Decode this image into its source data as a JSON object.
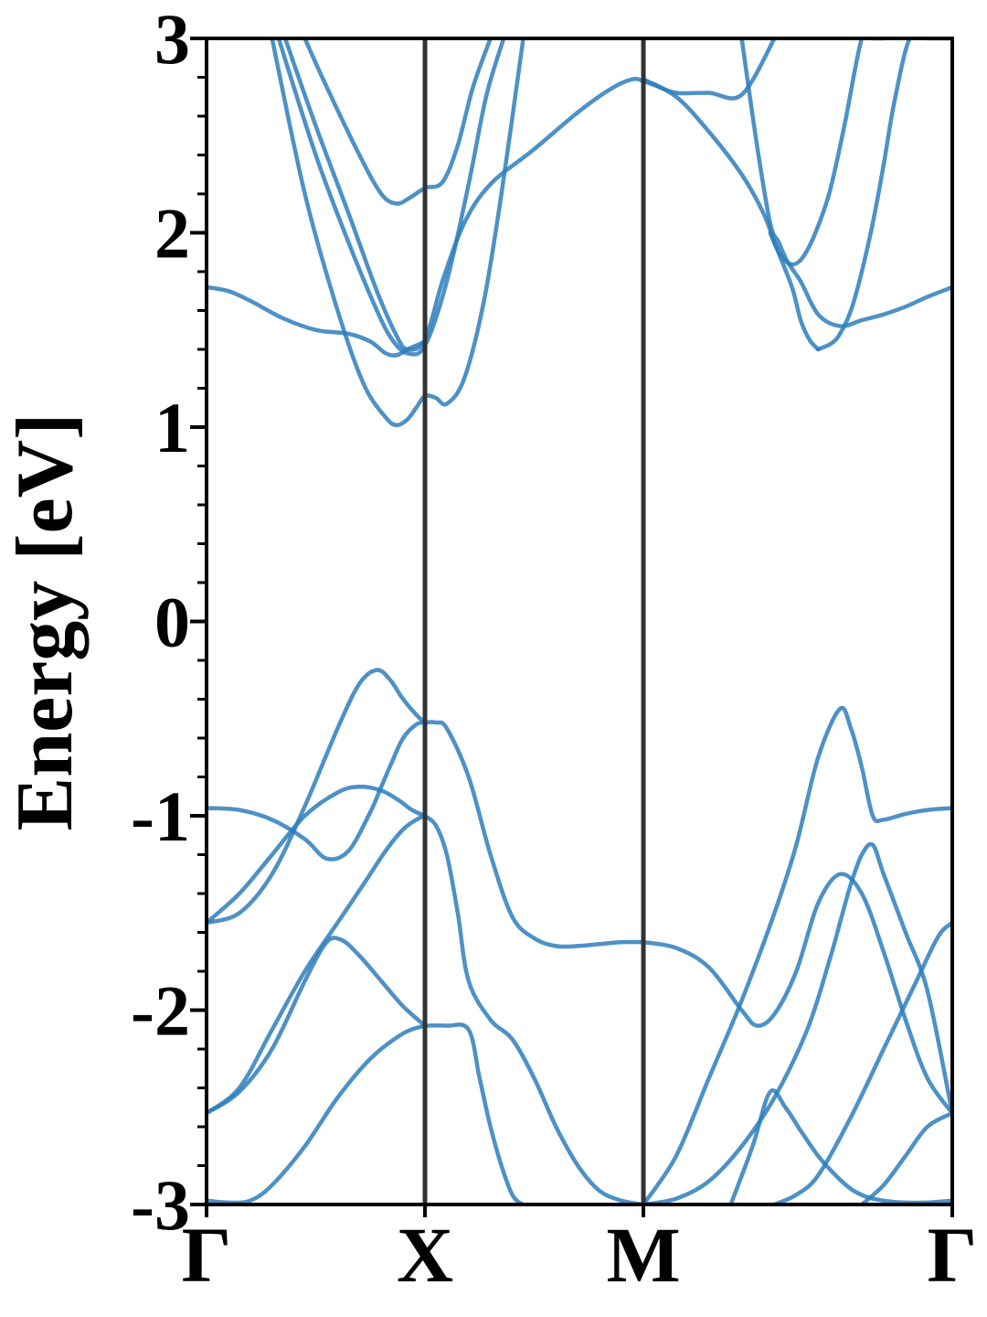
{
  "chart_data": {
    "type": "line",
    "title": "",
    "xlabel": "",
    "ylabel": "Energy [eV]",
    "ylim": [
      -3,
      3
    ],
    "xlim": [
      0,
      3.414
    ],
    "y_ticks": [
      "-3",
      "-2",
      "-1",
      "0",
      "1",
      "2",
      "3"
    ],
    "y_minor_step": 0.2,
    "x_ticks": [
      {
        "label": "Γ",
        "x": 0
      },
      {
        "label": "X",
        "x": 1
      },
      {
        "label": "M",
        "x": 2
      },
      {
        "label": "Γ",
        "x": 3.414
      }
    ],
    "k_path_lines": [
      1,
      2
    ],
    "grid": false,
    "line_color": "#2e7ebc",
    "k_line_color": "#333333",
    "series": [
      {
        "x": [
          0,
          0.1,
          0.2,
          0.35,
          0.5,
          0.65,
          0.75,
          0.82,
          0.87,
          0.92,
          0.96,
          1
        ],
        "values": [
          1.72,
          1.7,
          1.65,
          1.56,
          1.5,
          1.48,
          1.44,
          1.38,
          1.37,
          1.4,
          1.42,
          1.44
        ]
      },
      {
        "x": [
          0.3,
          0.45,
          0.6,
          0.72,
          0.82,
          0.87,
          0.92,
          0.96,
          1,
          1.05,
          1.1,
          1.18,
          1.27,
          1.35,
          1.45
        ],
        "values": [
          3.0,
          2.2,
          1.6,
          1.22,
          1.05,
          1.01,
          1.04,
          1.1,
          1.16,
          1.15,
          1.12,
          1.25,
          1.65,
          2.2,
          3.0
        ]
      },
      {
        "x": [
          0.33,
          0.5,
          0.65,
          0.78,
          0.85,
          0.92,
          1,
          1.1,
          1.2,
          1.28,
          1.36
        ],
        "values": [
          3.0,
          2.4,
          1.95,
          1.6,
          1.45,
          1.38,
          1.42,
          1.75,
          2.25,
          2.7,
          3.0
        ]
      },
      {
        "x": [
          0.36,
          0.5,
          0.65,
          0.78,
          0.87,
          0.92,
          1,
          1.08,
          1.18,
          1.3,
          1.5,
          1.7,
          1.85,
          1.95,
          2,
          2.05,
          2.15,
          2.3,
          2.45,
          2.6
        ],
        "values": [
          3.0,
          2.55,
          2.1,
          1.7,
          1.47,
          1.4,
          1.45,
          1.75,
          2.05,
          2.25,
          2.43,
          2.62,
          2.74,
          2.79,
          2.78,
          2.76,
          2.72,
          2.72,
          2.71,
          3.0
        ]
      },
      {
        "x": [
          0.45,
          0.55,
          0.7,
          0.8,
          0.87,
          0.93,
          1,
          1.08,
          1.15,
          1.22,
          1.3
        ],
        "values": [
          3.0,
          2.75,
          2.4,
          2.2,
          2.15,
          2.18,
          2.23,
          2.26,
          2.45,
          2.75,
          3.0
        ]
      },
      {
        "x": [
          2,
          2.15,
          2.3,
          2.45,
          2.55,
          2.6,
          2.68,
          2.72,
          2.76,
          2.8
        ],
        "values": [
          2.79,
          2.7,
          2.52,
          2.3,
          2.1,
          1.95,
          1.72,
          1.55,
          1.45,
          1.4
        ]
      },
      {
        "x": [
          2.45,
          2.52,
          2.58,
          2.62,
          2.66,
          2.72,
          2.8,
          2.9,
          3.0,
          3.1,
          3.2,
          3.3,
          3.414
        ],
        "values": [
          3.0,
          2.45,
          2.05,
          1.95,
          1.85,
          1.75,
          1.58,
          1.52,
          1.55,
          1.58,
          1.62,
          1.67,
          1.72
        ]
      },
      {
        "x": [
          2.58,
          2.62,
          2.67,
          2.72,
          2.78,
          2.85,
          2.92,
          3.0,
          3.05,
          3.1
        ],
        "values": [
          2.0,
          1.9,
          1.84,
          1.86,
          1.98,
          2.2,
          2.55,
          3.0,
          3.0,
          3.0
        ]
      },
      {
        "x": [
          2.8,
          2.86,
          2.9,
          2.95,
          3.0,
          3.05,
          3.1,
          3.15,
          3.22,
          3.3,
          3.36,
          3.414
        ],
        "values": [
          1.4,
          1.43,
          1.48,
          1.6,
          1.8,
          2.05,
          2.35,
          2.68,
          3.0,
          3.0,
          3.0,
          3.0
        ]
      },
      {
        "x": [
          0,
          0.15,
          0.3,
          0.45,
          0.6,
          0.7,
          0.78,
          0.84,
          0.9,
          0.96,
          1
        ],
        "values": [
          -1.55,
          -1.5,
          -1.3,
          -0.95,
          -0.55,
          -0.32,
          -0.25,
          -0.3,
          -0.4,
          -0.48,
          -0.52
        ]
      },
      {
        "x": [
          1,
          1.05,
          1.1,
          1.2,
          1.3,
          1.4,
          1.5,
          1.6,
          1.7,
          1.8,
          1.9,
          2
        ],
        "values": [
          -0.52,
          -0.52,
          -0.55,
          -0.8,
          -1.2,
          -1.52,
          -1.63,
          -1.67,
          -1.67,
          -1.66,
          -1.65,
          -1.65
        ]
      },
      {
        "x": [
          0,
          0.15,
          0.3,
          0.45,
          0.55,
          0.65,
          0.75,
          0.8,
          0.85,
          0.9,
          0.96,
          1
        ],
        "values": [
          -0.96,
          -0.97,
          -1.02,
          -1.12,
          -1.22,
          -1.18,
          -0.98,
          -0.85,
          -0.72,
          -0.6,
          -0.53,
          -0.52
        ]
      },
      {
        "x": [
          0,
          0.15,
          0.3,
          0.45,
          0.6,
          0.7,
          0.8,
          0.88,
          0.94,
          1
        ],
        "values": [
          -1.55,
          -1.4,
          -1.2,
          -1.0,
          -0.88,
          -0.85,
          -0.87,
          -0.92,
          -0.97,
          -1.0
        ]
      },
      {
        "x": [
          1,
          1.05,
          1.1,
          1.15,
          1.2,
          1.3,
          1.4,
          1.5,
          1.6,
          1.7,
          1.8,
          1.9,
          2
        ],
        "values": [
          -1.0,
          -1.05,
          -1.2,
          -1.5,
          -1.85,
          -2.05,
          -2.15,
          -2.35,
          -2.6,
          -2.8,
          -2.93,
          -2.98,
          -3.0
        ]
      },
      {
        "x": [
          0,
          0.15,
          0.3,
          0.45,
          0.6,
          0.72,
          0.82,
          0.9,
          0.96,
          1
        ],
        "values": [
          -2.53,
          -2.4,
          -2.1,
          -1.8,
          -1.55,
          -1.35,
          -1.18,
          -1.07,
          -1.02,
          -1.0
        ]
      },
      {
        "x": [
          0,
          0.15,
          0.3,
          0.45,
          0.55,
          0.62,
          0.7,
          0.8,
          0.9,
          1
        ],
        "values": [
          -2.53,
          -2.42,
          -2.2,
          -1.85,
          -1.65,
          -1.64,
          -1.72,
          -1.85,
          -1.98,
          -2.08
        ]
      },
      {
        "x": [
          1,
          1.1,
          1.2,
          1.25,
          1.3,
          1.35,
          1.4,
          1.45,
          1.5
        ],
        "values": [
          -2.08,
          -2.08,
          -2.1,
          -2.35,
          -2.6,
          -2.8,
          -2.95,
          -3.0,
          -3.0
        ]
      },
      {
        "x": [
          0,
          0.1,
          0.2,
          0.3,
          0.45,
          0.6,
          0.75,
          0.9,
          1
        ],
        "values": [
          -2.98,
          -2.99,
          -2.98,
          -2.9,
          -2.7,
          -2.45,
          -2.25,
          -2.12,
          -2.08
        ]
      },
      {
        "x": [
          2,
          2.15,
          2.3,
          2.45,
          2.52,
          2.6,
          2.7,
          2.8,
          2.9,
          3.0,
          3.1,
          3.2,
          3.3,
          3.414
        ],
        "values": [
          -1.65,
          -1.68,
          -1.78,
          -2.0,
          -2.08,
          -2.02,
          -1.8,
          -1.45,
          -1.3,
          -1.4,
          -1.7,
          -2.05,
          -2.35,
          -2.53
        ]
      },
      {
        "x": [
          2,
          2.15,
          2.3,
          2.45,
          2.6,
          2.7,
          2.8,
          2.9,
          2.95,
          3.0,
          3.05,
          3.1,
          3.2,
          3.3,
          3.414
        ],
        "values": [
          -3.0,
          -2.75,
          -2.35,
          -1.95,
          -1.5,
          -1.15,
          -0.7,
          -0.45,
          -0.55,
          -0.75,
          -1.0,
          -1.02,
          -0.99,
          -0.97,
          -0.96
        ]
      },
      {
        "x": [
          2,
          2.15,
          2.3,
          2.45,
          2.6,
          2.75,
          2.85,
          2.9,
          2.95,
          3.0,
          3.05,
          3.1,
          3.2,
          3.3,
          3.414
        ],
        "values": [
          -3.0,
          -2.97,
          -2.88,
          -2.7,
          -2.45,
          -2.1,
          -1.75,
          -1.55,
          -1.35,
          -1.2,
          -1.15,
          -1.3,
          -1.6,
          -1.9,
          -2.53
        ]
      },
      {
        "x": [
          2.4,
          2.5,
          2.58,
          2.65,
          2.72,
          2.8,
          2.88,
          2.95,
          3.02,
          3.1,
          3.2,
          3.3,
          3.414
        ],
        "values": [
          -3.0,
          -2.7,
          -2.42,
          -2.5,
          -2.62,
          -2.75,
          -2.85,
          -2.92,
          -2.96,
          -2.98,
          -2.99,
          -2.99,
          -2.98
        ]
      },
      {
        "x": [
          2.6,
          2.7,
          2.8,
          2.95,
          3.1,
          3.25,
          3.35,
          3.414
        ],
        "values": [
          -3.0,
          -2.95,
          -2.85,
          -2.55,
          -2.2,
          -1.85,
          -1.62,
          -1.55
        ]
      },
      {
        "x": [
          3.0,
          3.1,
          3.2,
          3.3,
          3.414
        ],
        "values": [
          -3.0,
          -2.9,
          -2.75,
          -2.6,
          -2.53
        ]
      }
    ]
  }
}
